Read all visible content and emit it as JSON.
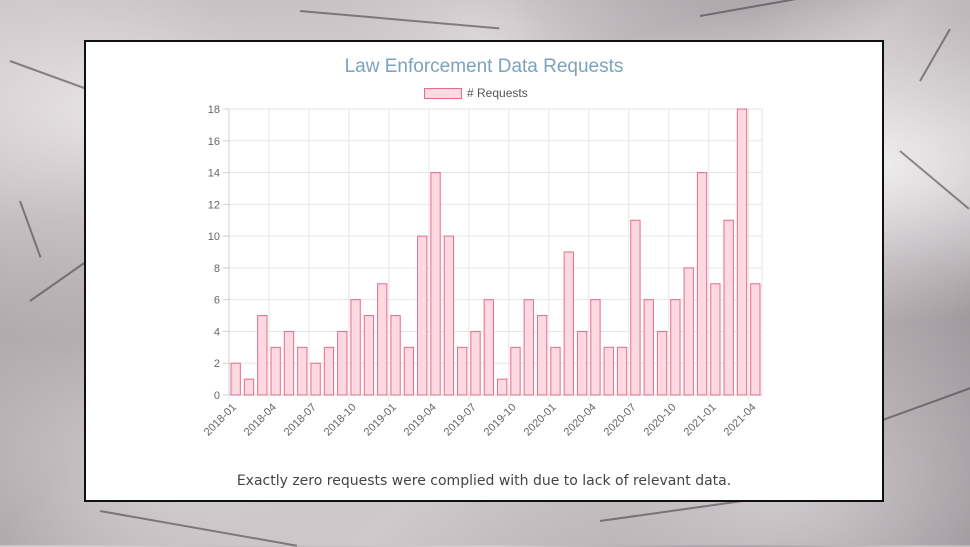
{
  "title": "Law Enforcement Data Requests",
  "legend_label": "# Requests",
  "caption": "Exactly zero requests were complied with due to lack of relevant data.",
  "colors": {
    "title": "#7aa3bf",
    "bar_fill": "#fdd9e2",
    "bar_stroke": "#e66b8d",
    "grid": "#e6e6e6"
  },
  "chart_data": {
    "type": "bar",
    "title": "Law Enforcement Data Requests",
    "xlabel": "",
    "ylabel": "",
    "ylim": [
      0,
      18
    ],
    "y_ticks": [
      0,
      2,
      4,
      6,
      8,
      10,
      12,
      14,
      16,
      18
    ],
    "grid": true,
    "legend": "top",
    "x_tick_labels": [
      "2018-01",
      "2018-04",
      "2018-07",
      "2018-10",
      "2019-01",
      "2019-04",
      "2019-07",
      "2019-10",
      "2020-01",
      "2020-04",
      "2020-07",
      "2020-10",
      "2021-01",
      "2021-04"
    ],
    "categories": [
      "2018-01",
      "2018-02",
      "2018-03",
      "2018-04",
      "2018-05",
      "2018-06",
      "2018-07",
      "2018-08",
      "2018-09",
      "2018-10",
      "2018-11",
      "2018-12",
      "2019-01",
      "2019-02",
      "2019-03",
      "2019-04",
      "2019-05",
      "2019-06",
      "2019-07",
      "2019-08",
      "2019-09",
      "2019-10",
      "2019-11",
      "2019-12",
      "2020-01",
      "2020-02",
      "2020-03",
      "2020-04",
      "2020-05",
      "2020-06",
      "2020-07",
      "2020-08",
      "2020-09",
      "2020-10",
      "2020-11",
      "2020-12",
      "2021-01",
      "2021-02",
      "2021-03",
      "2021-04"
    ],
    "series": [
      {
        "name": "# Requests",
        "values": [
          2,
          1,
          5,
          3,
          4,
          3,
          2,
          3,
          4,
          6,
          5,
          7,
          5,
          3,
          10,
          14,
          10,
          3,
          4,
          6,
          1,
          3,
          6,
          5,
          3,
          9,
          4,
          6,
          3,
          3,
          11,
          6,
          4,
          6,
          8,
          14,
          7,
          11,
          18,
          7
        ]
      }
    ]
  }
}
